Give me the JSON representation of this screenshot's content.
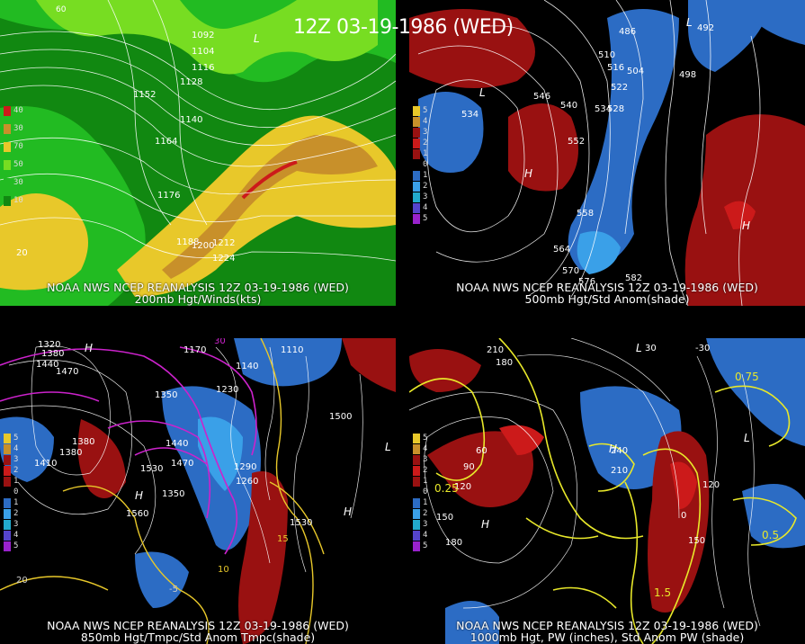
{
  "title": "12Z 03-19-1986 (WED)",
  "colors": {
    "green_dark": "#118811",
    "green": "#22bb22",
    "green_light": "#77dd22",
    "yellow": "#e8c82a",
    "orange": "#c8902a",
    "red_dark": "#991111",
    "red": "#cc1a1a",
    "blue": "#2c6cc4",
    "blue_light": "#3aa0e8",
    "magenta": "#cc22cc",
    "contour": "#ffffff",
    "pw_yellow": "#e8e82a"
  },
  "panels": [
    {
      "caption_1": "NOAA NWS NCEP REANALYSIS 12Z 03-19-1986 (WED)",
      "caption_2": "200mb Hgt/Winds(kts)",
      "legend": [
        "40",
        "30",
        "70",
        "50",
        "30",
        "10",
        "20"
      ],
      "labels": [
        "1092",
        "1104",
        "1116",
        "1128",
        "1140",
        "1152",
        "1164",
        "1176",
        "1188",
        "1200",
        "1212",
        "1224",
        "20",
        "L",
        "60"
      ]
    },
    {
      "caption_1": "NOAA NWS NCEP REANALYSIS 12Z 03-19-1986 (WED)",
      "caption_2": "500mb Hgt/Std Anom(shade)",
      "legend": [
        "5",
        "4",
        "3",
        "2",
        "1",
        "0",
        "1",
        "2",
        "3",
        "4",
        "5"
      ],
      "labels": [
        "534",
        "486",
        "492",
        "498",
        "510",
        "516",
        "504",
        "522",
        "528",
        "534",
        "540",
        "546",
        "552",
        "558",
        "564",
        "570",
        "576",
        "582",
        "L",
        "H",
        "H",
        "L"
      ]
    },
    {
      "caption_1": "NOAA NWS NCEP REANALYSIS 12Z 03-19-1986 (WED)",
      "caption_2": "850mb Hgt/Tmpc/Std Anom Tmpc(shade)",
      "legend": [
        "5",
        "4",
        "3",
        "2",
        "1",
        "0",
        "1",
        "2",
        "3",
        "4",
        "5"
      ],
      "labels": [
        "1320",
        "1380",
        "1440",
        "1470",
        "1410",
        "1380",
        "1350",
        "1290",
        "1260",
        "1230",
        "1170",
        "1110",
        "1140",
        "1500",
        "1530",
        "1560",
        "1350",
        "1530",
        "1470",
        "1440",
        "1380",
        "H",
        "H",
        "H",
        "L",
        "30",
        "20",
        "10",
        "15",
        "-5"
      ]
    },
    {
      "caption_1": "NOAA NWS NCEP REANALYSIS 12Z 03-19-1986 (WED)",
      "caption_2": "1000mb Hgt, PW (inches), Std Anom PW (shade)",
      "legend": [
        "5",
        "4",
        "3",
        "2",
        "1",
        "0",
        "1",
        "2",
        "3",
        "4",
        "5"
      ],
      "labels": [
        "210",
        "180",
        "150",
        "120",
        "90",
        "60",
        "30",
        "0",
        "-30",
        "0.25",
        "0.5",
        "1.5",
        "0.75",
        "240",
        "210",
        "180",
        "150",
        "120",
        "H",
        "H",
        "L",
        "L"
      ]
    }
  ]
}
